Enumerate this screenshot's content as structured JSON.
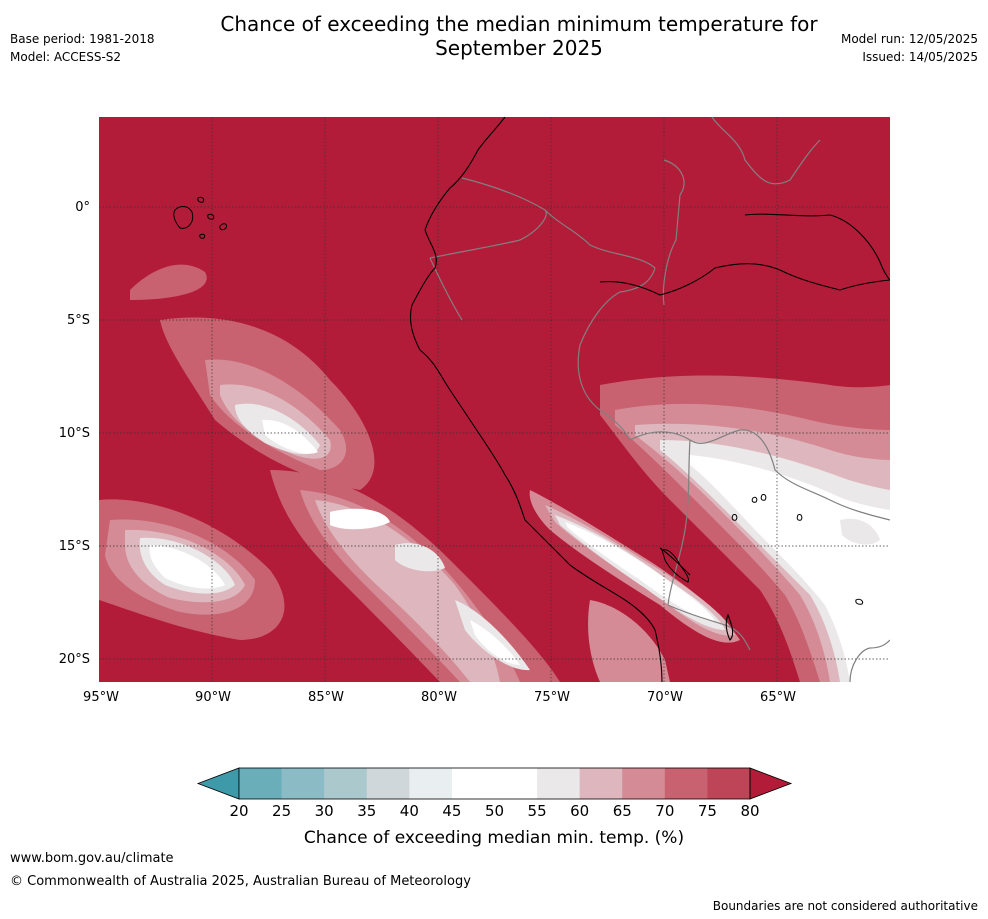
{
  "title": "Chance of exceeding the median minimum temperature for\nSeptember 2025",
  "meta": {
    "base_period": "Base period: 1981-2018",
    "model": "Model: ACCESS-S2",
    "model_run": "Model run: 12/05/2025",
    "issued": "Issued: 14/05/2025"
  },
  "map": {
    "lon_ticks": [
      "95°W",
      "90°W",
      "85°W",
      "80°W",
      "75°W",
      "70°W",
      "65°W"
    ],
    "lat_ticks": [
      "0°",
      "5°S",
      "10°S",
      "15°S",
      "20°S"
    ],
    "background_color": "#b31c38",
    "border_color": "#808080",
    "coast_color": "#000000"
  },
  "colorbar": {
    "labels": [
      "20",
      "25",
      "30",
      "35",
      "40",
      "45",
      "50",
      "55",
      "60",
      "65",
      "70",
      "75",
      "80"
    ],
    "colors": [
      "#3e9aa8",
      "#6aaeba",
      "#8bbcc6",
      "#abc9cd",
      "#d0d7da",
      "#e9eef1",
      "#ffffff",
      "#ffffff",
      "#ebe8ea",
      "#ddb7bd",
      "#d48b95",
      "#c96270",
      "#bd4557",
      "#b31c38"
    ],
    "title": "Chance of exceeding median min. temp. (%)"
  },
  "footer": {
    "url": "www.bom.gov.au/climate",
    "copyright": "© Commonwealth of Australia 2025, Australian Bureau of Meteorology",
    "note": "Boundaries are not considered authoritative"
  }
}
